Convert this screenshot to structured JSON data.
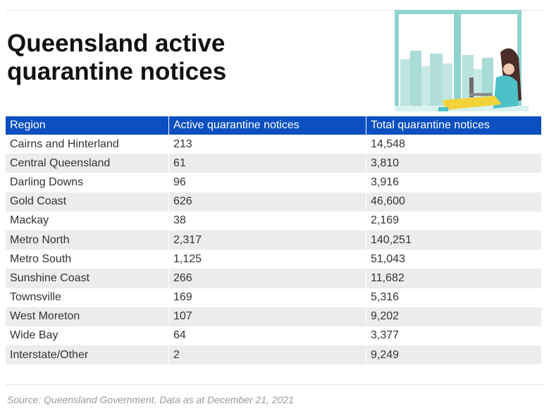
{
  "title": "Queensland active\nquarantine notices",
  "chart_data": {
    "type": "table",
    "columns": [
      "Region",
      "Active quarantine notices",
      "Total quarantine notices"
    ],
    "rows": [
      [
        "Cairns and Hinterland",
        "213",
        "14,548"
      ],
      [
        "Central Queensland",
        "61",
        "3,810"
      ],
      [
        "Darling Downs",
        "96",
        "3,916"
      ],
      [
        "Gold Coast",
        "626",
        "46,600"
      ],
      [
        "Mackay",
        "38",
        "2,169"
      ],
      [
        "Metro North",
        "2,317",
        "140,251"
      ],
      [
        "Metro South",
        "1,125",
        "51,043"
      ],
      [
        "Sunshine Coast",
        "266",
        "11,682"
      ],
      [
        "Townsville",
        "169",
        "5,316"
      ],
      [
        "West Moreton",
        "107",
        "9,202"
      ],
      [
        "Wide Bay",
        "64",
        "3,377"
      ],
      [
        "Interstate/Other",
        "2",
        "9,249"
      ]
    ]
  },
  "source": "Source: Queensland Government. Data as at December  21, 2021",
  "colors": {
    "header_bg": "#0c4fc0",
    "stripe": "#ececec"
  },
  "icons": {
    "illustration": "person-with-laptop-at-window-illustration"
  }
}
